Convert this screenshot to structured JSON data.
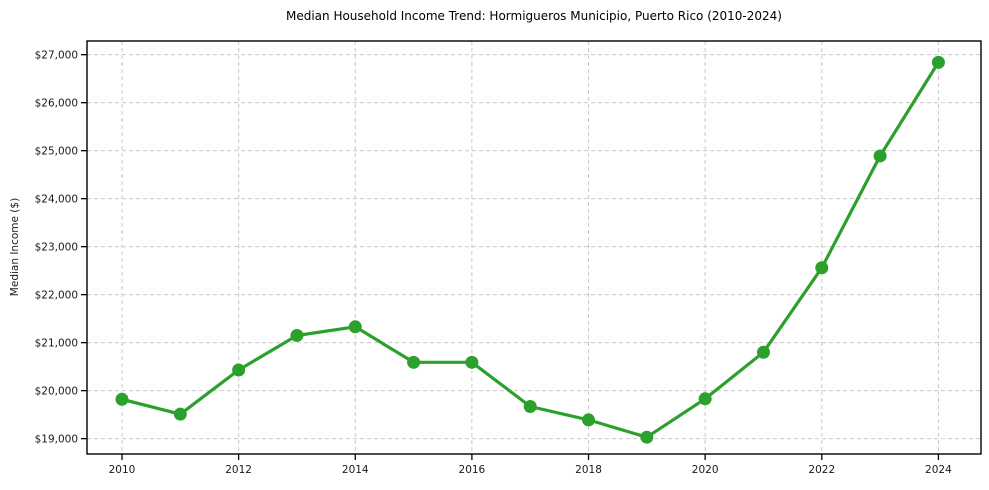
{
  "chart_data": {
    "type": "line",
    "title": "Median Household Income Trend: Hormigueros Municipio, Puerto Rico (2010-2024)",
    "xlabel": "",
    "ylabel": "Median Income ($)",
    "x": [
      2010,
      2011,
      2012,
      2013,
      2014,
      2015,
      2016,
      2017,
      2018,
      2019,
      2020,
      2021,
      2022,
      2023,
      2024
    ],
    "values": [
      19820,
      19510,
      20430,
      21150,
      21330,
      20590,
      20590,
      19670,
      19390,
      19030,
      19830,
      20800,
      22560,
      24890,
      26840
    ],
    "xticks": [
      2010,
      2012,
      2014,
      2016,
      2018,
      2020,
      2022,
      2024
    ],
    "xtick_labels": [
      "2010",
      "2012",
      "2014",
      "2016",
      "2018",
      "2020",
      "2022",
      "2024"
    ],
    "yticks": [
      19000,
      20000,
      21000,
      22000,
      23000,
      24000,
      25000,
      26000,
      27000
    ],
    "ytick_labels": [
      "$19,000",
      "$20,000",
      "$21,000",
      "$22,000",
      "$23,000",
      "$24,000",
      "$25,000",
      "$26,000",
      "$27,000"
    ],
    "xlim": [
      2009.4,
      2024.73
    ],
    "ylim": [
      18680,
      27285
    ],
    "grid": true,
    "grid_style": "dashed",
    "legend": false,
    "marker": "circle",
    "colors": {
      "line": "#2ca02c",
      "marker": "#2ca02c",
      "grid": "#c9c9c9",
      "spine": "#000000",
      "tick": "#000000",
      "tick_label": "#1a1a1a",
      "title": "#000000",
      "background": "#ffffff"
    }
  }
}
